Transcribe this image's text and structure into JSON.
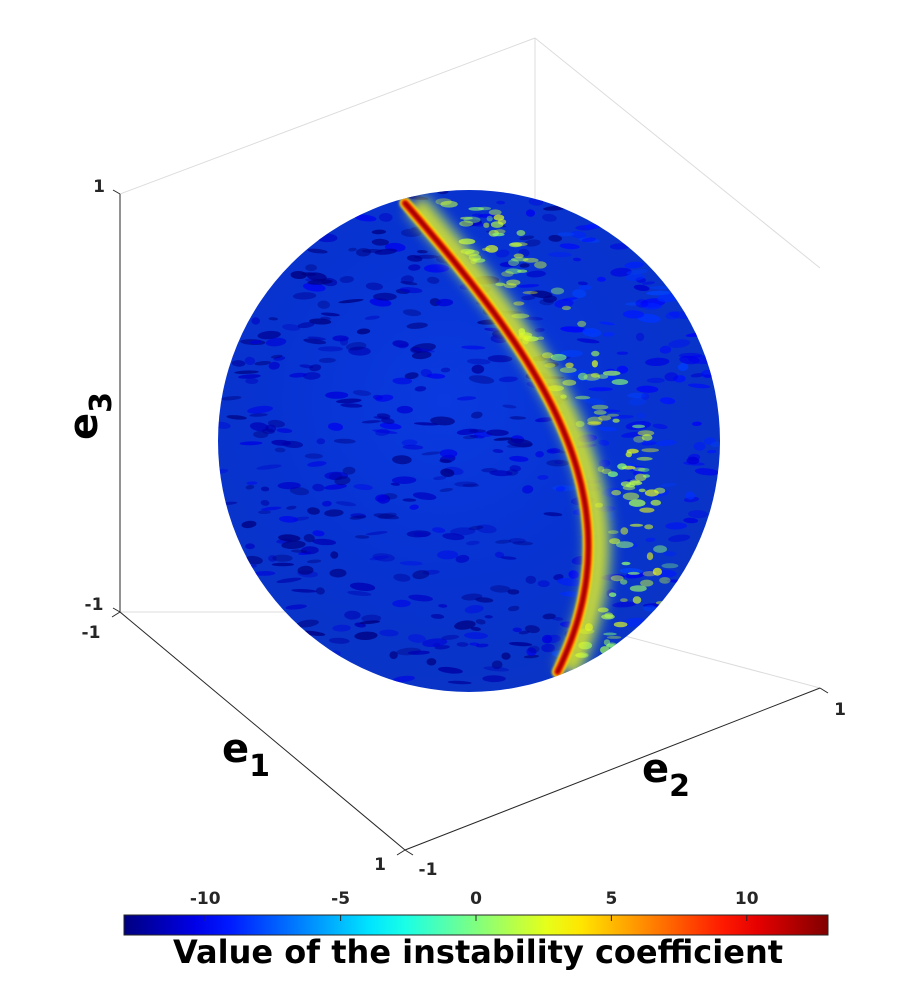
{
  "chart_data": {
    "type": "surface",
    "surface": "unit sphere",
    "colormap": "jet",
    "axes": {
      "e1": {
        "label_main": "e",
        "label_sub": "1",
        "range": [
          -1,
          1
        ],
        "ticks": [
          "-1",
          "1"
        ]
      },
      "e2": {
        "label_main": "e",
        "label_sub": "2",
        "range": [
          -1,
          1
        ],
        "ticks": [
          "-1",
          "1"
        ]
      },
      "e3": {
        "label_main": "e",
        "label_sub": "3",
        "range": [
          -1,
          1
        ],
        "ticks": [
          "-1",
          "1"
        ]
      }
    },
    "colorbar": {
      "label": "Value of the instability coefficient",
      "range": [
        -13,
        13
      ],
      "ticks": [
        -10,
        -5,
        0,
        5,
        10
      ],
      "tick_labels": [
        "-10",
        "-5",
        "0",
        "5",
        "10"
      ],
      "placement": "bottom"
    },
    "features": {
      "background_value": -7,
      "ridge_peak_value": 11,
      "ridge": "narrow high-value band along a great-circle arc"
    }
  }
}
